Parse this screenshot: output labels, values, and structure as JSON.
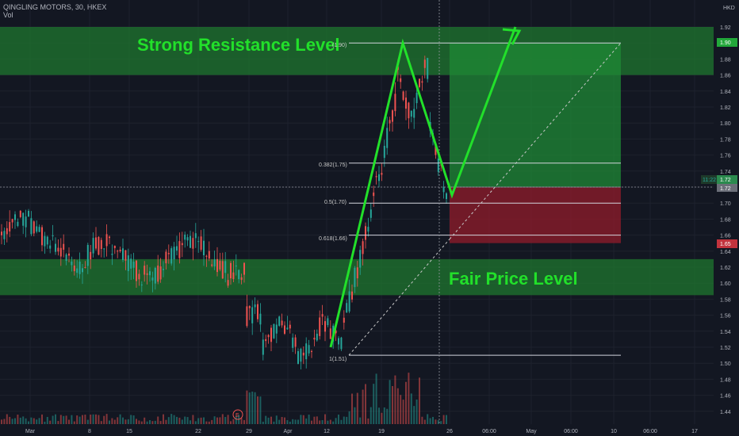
{
  "header": {
    "symbol_line": "QINGLING MOTORS, 30, HKEX",
    "sub_line": "Vol",
    "currency": "HKD"
  },
  "annotations": {
    "resistance": "Strong Resistance Level",
    "fair": "Fair Price Level",
    "fib_top": "(1.90)",
    "fib_382": "0.382(1.75)",
    "fib_50": "0.5(1.70)",
    "fib_618": "0.618(1.66)",
    "fib_1": "1(1.51)",
    "event": "E"
  },
  "price_badges": {
    "top": "1.90",
    "current": "1.72",
    "current_time": "11:22",
    "stop": "1.65"
  },
  "colors": {
    "bg": "#131722",
    "zone": "#1f7a2f",
    "annotation": "#22e02a",
    "up": "#26a69a",
    "down": "#ef5350",
    "target": "#1f8a35",
    "stop": "#8a1c2a"
  },
  "chart_data": {
    "type": "candlestick",
    "title": "QINGLING MOTORS, 30, HKEX",
    "y_ticks": [
      "1.92",
      "1.90",
      "1.88",
      "1.86",
      "1.84",
      "1.82",
      "1.80",
      "1.78",
      "1.76",
      "1.74",
      "1.72",
      "1.70",
      "1.68",
      "1.66",
      "1.64",
      "1.62",
      "1.60",
      "1.58",
      "1.56",
      "1.54",
      "1.52",
      "1.50",
      "1.48",
      "1.46",
      "1.44"
    ],
    "x_ticks": [
      "Mar",
      "8",
      "15",
      "22",
      "29",
      "Apr",
      "12",
      "19",
      "26",
      "06:00",
      "May",
      "06:00",
      "10",
      "06:00",
      "17"
    ],
    "zones": [
      {
        "name": "Strong Resistance Level",
        "from": 1.86,
        "to": 1.92
      },
      {
        "name": "Fair Price Level",
        "from": 1.585,
        "to": 1.63
      }
    ],
    "fib_levels": [
      {
        "label": "(1.90)",
        "value": 1.9
      },
      {
        "label": "0.382(1.75)",
        "value": 1.75
      },
      {
        "label": "0.5(1.70)",
        "value": 1.7
      },
      {
        "label": "0.618(1.66)",
        "value": 1.66
      },
      {
        "label": "1(1.51)",
        "value": 1.51
      }
    ],
    "position": {
      "entry": 1.72,
      "target": 1.9,
      "stop": 1.65
    },
    "projection_path": [
      1.52,
      1.9,
      1.71,
      1.92
    ]
  }
}
